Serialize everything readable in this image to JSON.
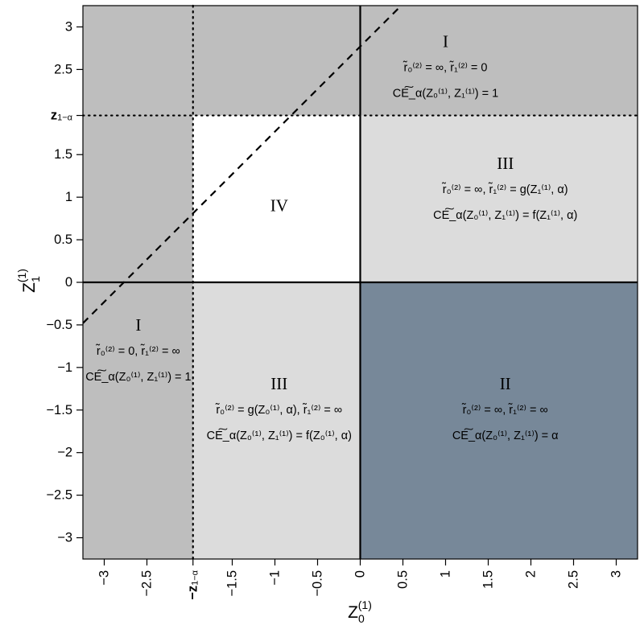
{
  "chart_data": {
    "type": "scatter",
    "xlabel": "Z",
    "xlabel_sub": "0",
    "xlabel_sup": "(1)",
    "ylabel": "Z",
    "ylabel_sub": "1",
    "ylabel_sup": "(1)",
    "xlim": [
      -3.25,
      3.25
    ],
    "ylim": [
      -3.25,
      3.25
    ],
    "x_ticks": [
      {
        "value": -3,
        "label": "−3"
      },
      {
        "value": -2.5,
        "label": "−2.5"
      },
      {
        "value": -1.5,
        "label": "−1.5"
      },
      {
        "value": -1,
        "label": "−1"
      },
      {
        "value": -0.5,
        "label": "−0.5"
      },
      {
        "value": 0,
        "label": "0"
      },
      {
        "value": 0.5,
        "label": "0.5"
      },
      {
        "value": 1,
        "label": "1"
      },
      {
        "value": 1.5,
        "label": "1.5"
      },
      {
        "value": 2,
        "label": "2"
      },
      {
        "value": 2.5,
        "label": "2.5"
      },
      {
        "value": 3,
        "label": "3"
      }
    ],
    "y_ticks": [
      {
        "value": 3,
        "label": "3"
      },
      {
        "value": 2.5,
        "label": "2.5"
      },
      {
        "value": 1.5,
        "label": "1.5"
      },
      {
        "value": 1,
        "label": "1"
      },
      {
        "value": 0.5,
        "label": "0.5"
      },
      {
        "value": 0,
        "label": "0"
      },
      {
        "value": -0.5,
        "label": "−0.5"
      },
      {
        "value": -1,
        "label": "−1"
      },
      {
        "value": -1.5,
        "label": "−1.5"
      },
      {
        "value": -2,
        "label": "−2"
      },
      {
        "value": -2.5,
        "label": "−2.5"
      },
      {
        "value": -3,
        "label": "−3"
      }
    ],
    "critical_value": 1.96,
    "x_critical_label": "−z",
    "y_critical_label": "z",
    "critical_label_sub": "1−α",
    "grid": false,
    "colors": {
      "region_I": "#bebebe",
      "region_II": "#778899",
      "region_III": "#dcdcdc",
      "region_IV": "#ffffff"
    },
    "regions": [
      {
        "id": "I",
        "fill": "#bebebe",
        "x": [
          -3.25,
          3.25
        ],
        "y": [
          1.96,
          3.25
        ]
      },
      {
        "id": "I",
        "fill": "#bebebe",
        "x": [
          -3.25,
          -1.96
        ],
        "y": [
          -3.25,
          1.96
        ]
      },
      {
        "id": "III",
        "fill": "#dcdcdc",
        "x": [
          0,
          3.25
        ],
        "y": [
          0,
          1.96
        ]
      },
      {
        "id": "III",
        "fill": "#dcdcdc",
        "x": [
          -1.96,
          0
        ],
        "y": [
          -3.25,
          0
        ]
      },
      {
        "id": "II",
        "fill": "#778899",
        "x": [
          0,
          3.25
        ],
        "y": [
          -3.25,
          0
        ]
      },
      {
        "id": "IV",
        "fill": "#ffffff",
        "x": [
          -1.96,
          0
        ],
        "y": [
          0,
          1.96
        ]
      }
    ],
    "dashed_line": {
      "intercept": 2.77,
      "slope": 1
    },
    "annotations": [
      {
        "x": 1.0,
        "y": 2.83,
        "roman": "I",
        "line1": "r̃₀⁽²⁾ = ∞,  r̃₁⁽²⁾ = 0",
        "line2": "CE͠_α(Z₀⁽¹⁾, Z₁⁽¹⁾) = 1"
      },
      {
        "x": -2.6,
        "y": -0.5,
        "roman": "I",
        "line1": "r̃₀⁽²⁾ = 0,  r̃₁⁽²⁾ = ∞",
        "line2": "CE͠_α(Z₀⁽¹⁾, Z₁⁽¹⁾) = 1"
      },
      {
        "x": 1.7,
        "y": 1.4,
        "roman": "III",
        "line1": "r̃₀⁽²⁾ = ∞,  r̃₁⁽²⁾ = g(Z₁⁽¹⁾, α)",
        "line2": "CE͠_α(Z₀⁽¹⁾, Z₁⁽¹⁾) = f(Z₁⁽¹⁾, α)"
      },
      {
        "x": -0.95,
        "y": -1.19,
        "roman": "III",
        "line1": "r̃₀⁽²⁾ = g(Z₀⁽¹⁾, α),  r̃₁⁽²⁾ = ∞",
        "line2": "CE͠_α(Z₀⁽¹⁾, Z₁⁽¹⁾) = f(Z₀⁽¹⁾, α)"
      },
      {
        "x": 1.7,
        "y": -1.19,
        "roman": "II",
        "line1": "r̃₀⁽²⁾ = ∞,  r̃₁⁽²⁾ = ∞",
        "line2": "CE͠_α(Z₀⁽¹⁾, Z₁⁽¹⁾) = α"
      },
      {
        "x": -0.95,
        "y": 0.9,
        "roman": "IV",
        "line1": "",
        "line2": ""
      }
    ]
  }
}
